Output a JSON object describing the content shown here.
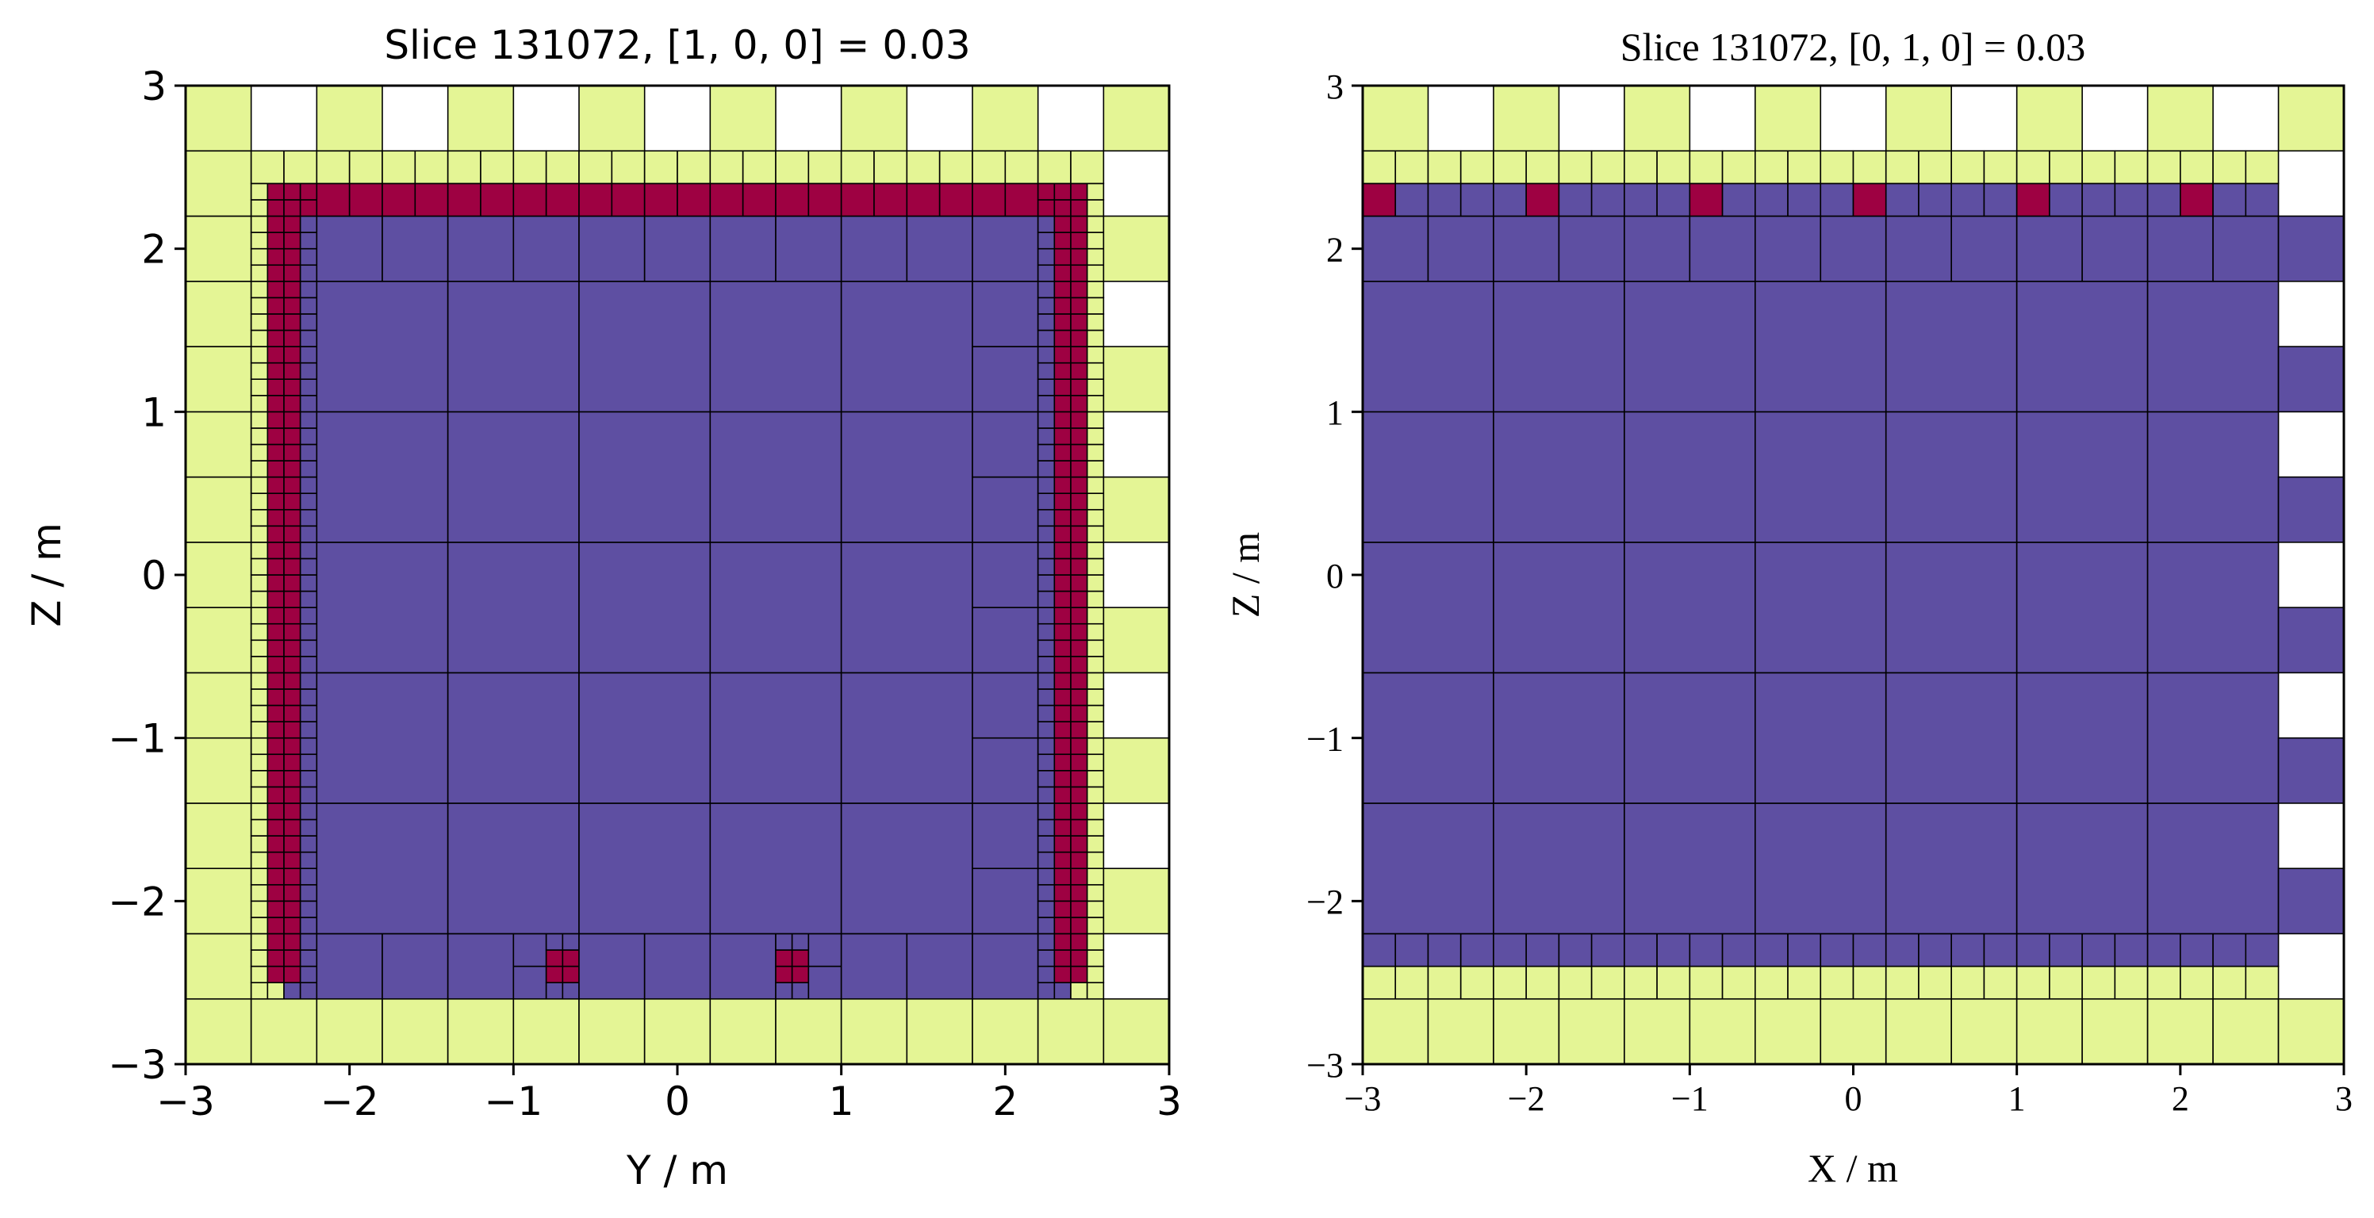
{
  "colors": {
    "background": "#ffffff",
    "outside": "#e4f595",
    "material_a": "#5e4fa2",
    "material_b": "#9e0142",
    "cell_edge": "#000000"
  },
  "chart_data": [
    {
      "type": "heatmap",
      "title": "Slice 131072, [1, 0, 0] = 0.03",
      "xlabel": "Y / m",
      "ylabel": "Z / m",
      "xlim": [
        -3,
        3
      ],
      "ylim": [
        -3,
        3
      ],
      "xticks": [
        -3,
        -2,
        -1,
        0,
        1,
        2,
        3
      ],
      "yticks": [
        -3,
        -2,
        -1,
        0,
        1,
        2,
        3
      ],
      "xtick_labels": [
        "−3",
        "−2",
        "−1",
        "0",
        "1",
        "2",
        "3"
      ],
      "ytick_labels": [
        "−3",
        "−2",
        "−1",
        "0",
        "1",
        "2",
        "3"
      ],
      "grid": false,
      "legend": "none",
      "categories": [
        "outside",
        "material_a",
        "material_b"
      ],
      "regions": [
        {
          "category": "outside",
          "x": [
            -3,
            3
          ],
          "y": [
            -3,
            3
          ]
        },
        {
          "category": "material_a",
          "x": [
            -2.4,
            2.4
          ],
          "y": [
            -2.6,
            2.2
          ]
        },
        {
          "category": "material_b",
          "x": [
            -2.5,
            2.5
          ],
          "y": [
            2.2,
            2.4
          ]
        },
        {
          "category": "material_b",
          "x": [
            -2.5,
            -2.3
          ],
          "y": [
            -2.5,
            2.4
          ]
        },
        {
          "category": "material_b",
          "x": [
            2.3,
            2.5
          ],
          "y": [
            -2.5,
            2.4
          ]
        },
        {
          "category": "material_b",
          "x": [
            -0.8,
            -0.6
          ],
          "y": [
            -2.5,
            -2.3
          ]
        },
        {
          "category": "material_b",
          "x": [
            0.6,
            0.8
          ],
          "y": [
            -2.5,
            -2.3
          ]
        }
      ]
    },
    {
      "type": "heatmap",
      "title": "Slice 131072, [0, 1, 0] = 0.03",
      "xlabel": "X / m",
      "ylabel": "Z / m",
      "xlim": [
        -3,
        3
      ],
      "ylim": [
        -3,
        3
      ],
      "xticks": [
        -3,
        -2,
        -1,
        0,
        1,
        2,
        3
      ],
      "yticks": [
        -3,
        -2,
        -1,
        0,
        1,
        2,
        3
      ],
      "xtick_labels": [
        "−3",
        "−2",
        "−1",
        "0",
        "1",
        "2",
        "3"
      ],
      "ytick_labels": [
        "−3",
        "−2",
        "−1",
        "0",
        "1",
        "2",
        "3"
      ],
      "grid": false,
      "legend": "none",
      "categories": [
        "outside",
        "material_a",
        "material_b"
      ],
      "regions": [
        {
          "category": "outside",
          "x": [
            -3,
            3
          ],
          "y": [
            -3,
            3
          ]
        },
        {
          "category": "material_a",
          "x": [
            -3,
            3
          ],
          "y": [
            -2.4,
            2.4
          ]
        },
        {
          "category": "material_b",
          "x": [
            -3,
            -2.8
          ],
          "y": [
            2.2,
            2.4
          ]
        },
        {
          "category": "material_b",
          "x": [
            -2,
            -1.8
          ],
          "y": [
            2.2,
            2.4
          ]
        },
        {
          "category": "material_b",
          "x": [
            -1,
            -0.8
          ],
          "y": [
            2.2,
            2.4
          ]
        },
        {
          "category": "material_b",
          "x": [
            0,
            0.2
          ],
          "y": [
            2.2,
            2.4
          ]
        },
        {
          "category": "material_b",
          "x": [
            1,
            1.2
          ],
          "y": [
            2.2,
            2.4
          ]
        },
        {
          "category": "material_b",
          "x": [
            2,
            2.2
          ],
          "y": [
            2.2,
            2.4
          ]
        }
      ]
    }
  ]
}
